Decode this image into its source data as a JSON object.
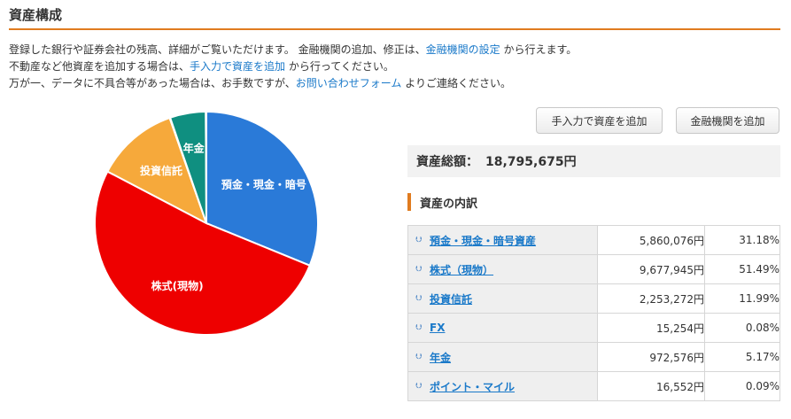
{
  "page": {
    "title": "資産構成"
  },
  "intro": {
    "line1_pre": "登録した銀行や証券会社の残高、詳細がご覧いただけます。 金融機関の追加、修正は、",
    "line1_link": "金融機関の設定",
    "line1_post": " から行えます。",
    "line2_pre": "不動産など他資産を追加する場合は、",
    "line2_link": "手入力で資産を追加",
    "line2_post": " から行ってください。",
    "line3_pre": "万が一、データに不具合等があった場合は、お手数ですが、",
    "line3_link": "お問い合わせフォーム",
    "line3_post": " よりご連絡ください。"
  },
  "buttons": {
    "manual_add": "手入力で資産を追加",
    "add_institution": "金融機関を追加"
  },
  "total": {
    "label": "資産総額：",
    "value": "18,795,675円"
  },
  "breakdown": {
    "heading": "資産の内訳",
    "rows": [
      {
        "name": "預金・現金・暗号資産",
        "amount": "5,860,076円",
        "percent": "31.18%"
      },
      {
        "name": "株式（現物）",
        "amount": "9,677,945円",
        "percent": "51.49%"
      },
      {
        "name": "投資信託",
        "amount": "2,253,272円",
        "percent": "11.99%"
      },
      {
        "name": "FX",
        "amount": "15,254円",
        "percent": "0.08%"
      },
      {
        "name": "年金",
        "amount": "972,576円",
        "percent": "5.17%"
      },
      {
        "name": "ポイント・マイル",
        "amount": "16,552円",
        "percent": "0.09%"
      }
    ]
  },
  "chart_data": {
    "type": "pie",
    "slices": [
      {
        "label": "預金・現金・暗号資産",
        "display_label": "預金・現金・暗号",
        "value": 31.18,
        "color": "#2a7ad8"
      },
      {
        "label": "株式(現物)",
        "display_label": "株式(現物)",
        "value": 51.49,
        "color": "#ee0000"
      },
      {
        "label": "投資信託",
        "display_label": "投資信託",
        "value": 11.99,
        "color": "#f6a93b"
      },
      {
        "label": "FX",
        "display_label": "",
        "value": 0.08,
        "color": "#4b6fe0"
      },
      {
        "label": "年金",
        "display_label": "年金",
        "value": 5.17,
        "color": "#0f8f80"
      },
      {
        "label": "ポイント・マイル",
        "display_label": "",
        "value": 0.09,
        "color": "#88c84d"
      }
    ]
  }
}
